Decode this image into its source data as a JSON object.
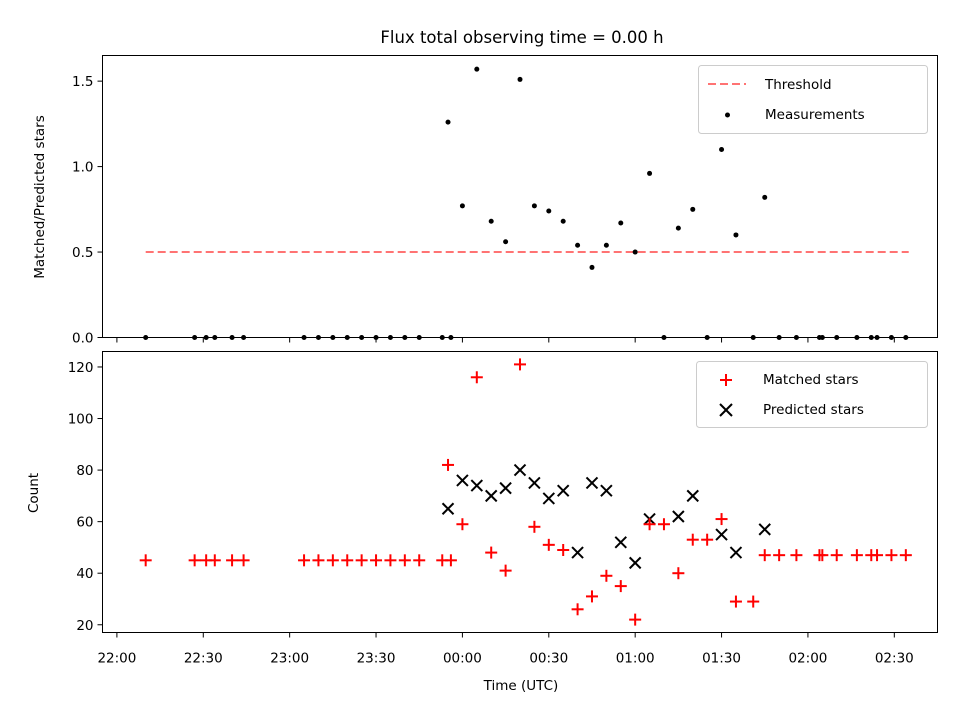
{
  "chart_data": [
    {
      "type": "scatter",
      "title": "Flux total observing time = 0.00 h",
      "xlabel": "",
      "ylabel": "Matched/Predicted stars",
      "xlim": [
        "21:55",
        "02:45"
      ],
      "ylim": [
        0,
        1.65
      ],
      "yticks": [
        0.0,
        0.5,
        1.0,
        1.5
      ],
      "ytick_labels": [
        "0.0",
        "0.5",
        "1.0",
        "1.5"
      ],
      "grid": false,
      "legend_position": "top-right",
      "threshold": {
        "name": "Threshold",
        "value": 0.5,
        "x_start": "22:10",
        "x_end": "02:35",
        "color": "#ff0000",
        "opacity": 0.55
      },
      "series": [
        {
          "name": "Measurements",
          "color": "#000000",
          "marker": "dot",
          "points": [
            [
              "22:10",
              0
            ],
            [
              "22:27",
              0
            ],
            [
              "22:31",
              0
            ],
            [
              "22:34",
              0
            ],
            [
              "22:40",
              0
            ],
            [
              "22:44",
              0
            ],
            [
              "23:05",
              0
            ],
            [
              "23:10",
              0
            ],
            [
              "23:15",
              0
            ],
            [
              "23:20",
              0
            ],
            [
              "23:25",
              0
            ],
            [
              "23:30",
              0
            ],
            [
              "23:35",
              0
            ],
            [
              "23:40",
              0
            ],
            [
              "23:45",
              0
            ],
            [
              "23:53",
              0
            ],
            [
              "23:56",
              0
            ],
            [
              "23:55",
              1.26
            ],
            [
              "00:00",
              0.77
            ],
            [
              "00:05",
              1.57
            ],
            [
              "00:10",
              0.68
            ],
            [
              "00:15",
              0.56
            ],
            [
              "00:20",
              1.51
            ],
            [
              "00:25",
              0.77
            ],
            [
              "00:30",
              0.74
            ],
            [
              "00:35",
              0.68
            ],
            [
              "00:40",
              0.54
            ],
            [
              "00:45",
              0.41
            ],
            [
              "00:50",
              0.54
            ],
            [
              "00:55",
              0.67
            ],
            [
              "01:00",
              0.5
            ],
            [
              "01:05",
              0.96
            ],
            [
              "01:10",
              0
            ],
            [
              "01:15",
              0.64
            ],
            [
              "01:20",
              0.75
            ],
            [
              "01:25",
              0
            ],
            [
              "01:30",
              1.1
            ],
            [
              "01:35",
              0.6
            ],
            [
              "01:41",
              0
            ],
            [
              "01:45",
              0.82
            ],
            [
              "01:50",
              0
            ],
            [
              "01:56",
              0
            ],
            [
              "02:04",
              0
            ],
            [
              "02:05",
              0
            ],
            [
              "02:10",
              0
            ],
            [
              "02:17",
              0
            ],
            [
              "02:22",
              0
            ],
            [
              "02:24",
              0
            ],
            [
              "02:29",
              0
            ],
            [
              "02:34",
              0
            ]
          ]
        }
      ]
    },
    {
      "type": "scatter",
      "title": "",
      "xlabel": "Time (UTC)",
      "ylabel": "Count",
      "xlim": [
        "21:55",
        "02:45"
      ],
      "ylim": [
        17,
        126
      ],
      "yticks": [
        20,
        40,
        60,
        80,
        100,
        120
      ],
      "ytick_labels": [
        "20",
        "40",
        "60",
        "80",
        "100",
        "120"
      ],
      "xticks": [
        "22:00",
        "22:30",
        "23:00",
        "23:30",
        "00:00",
        "00:30",
        "01:00",
        "01:30",
        "02:00",
        "02:30"
      ],
      "grid": false,
      "legend_position": "top-right",
      "series": [
        {
          "name": "Matched stars",
          "color": "#ff0000",
          "marker": "plus",
          "points": [
            [
              "22:10",
              45
            ],
            [
              "22:27",
              45
            ],
            [
              "22:31",
              45
            ],
            [
              "22:34",
              45
            ],
            [
              "22:40",
              45
            ],
            [
              "22:44",
              45
            ],
            [
              "23:05",
              45
            ],
            [
              "23:10",
              45
            ],
            [
              "23:15",
              45
            ],
            [
              "23:20",
              45
            ],
            [
              "23:25",
              45
            ],
            [
              "23:30",
              45
            ],
            [
              "23:35",
              45
            ],
            [
              "23:40",
              45
            ],
            [
              "23:45",
              45
            ],
            [
              "23:53",
              45
            ],
            [
              "23:56",
              45
            ],
            [
              "23:55",
              82
            ],
            [
              "00:00",
              59
            ],
            [
              "00:05",
              116
            ],
            [
              "00:10",
              48
            ],
            [
              "00:15",
              41
            ],
            [
              "00:20",
              121
            ],
            [
              "00:25",
              58
            ],
            [
              "00:30",
              51
            ],
            [
              "00:35",
              49
            ],
            [
              "00:40",
              26
            ],
            [
              "00:45",
              31
            ],
            [
              "00:50",
              39
            ],
            [
              "00:55",
              35
            ],
            [
              "01:00",
              22
            ],
            [
              "01:05",
              59
            ],
            [
              "01:10",
              59
            ],
            [
              "01:15",
              40
            ],
            [
              "01:20",
              53
            ],
            [
              "01:25",
              53
            ],
            [
              "01:30",
              61
            ],
            [
              "01:35",
              29
            ],
            [
              "01:41",
              29
            ],
            [
              "01:45",
              47
            ],
            [
              "01:50",
              47
            ],
            [
              "01:56",
              47
            ],
            [
              "02:04",
              47
            ],
            [
              "02:05",
              47
            ],
            [
              "02:10",
              47
            ],
            [
              "02:17",
              47
            ],
            [
              "02:22",
              47
            ],
            [
              "02:24",
              47
            ],
            [
              "02:29",
              47
            ],
            [
              "02:34",
              47
            ]
          ]
        },
        {
          "name": "Predicted stars",
          "color": "#000000",
          "marker": "x",
          "points": [
            [
              "23:55",
              65
            ],
            [
              "00:00",
              76
            ],
            [
              "00:05",
              74
            ],
            [
              "00:10",
              70
            ],
            [
              "00:15",
              73
            ],
            [
              "00:20",
              80
            ],
            [
              "00:25",
              75
            ],
            [
              "00:30",
              69
            ],
            [
              "00:35",
              72
            ],
            [
              "00:40",
              48
            ],
            [
              "00:45",
              75
            ],
            [
              "00:50",
              72
            ],
            [
              "00:55",
              52
            ],
            [
              "01:00",
              44
            ],
            [
              "01:05",
              61
            ],
            [
              "01:15",
              62
            ],
            [
              "01:20",
              70
            ],
            [
              "01:30",
              55
            ],
            [
              "01:35",
              48
            ],
            [
              "01:45",
              57
            ]
          ]
        }
      ]
    }
  ]
}
